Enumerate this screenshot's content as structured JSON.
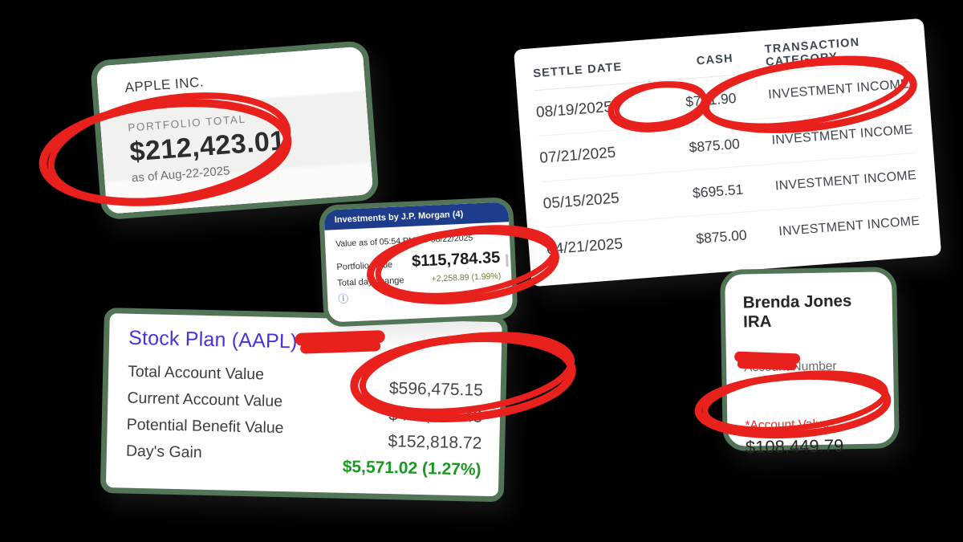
{
  "annotation_color": "#e8211d",
  "card_border_color": "#527557",
  "apple_card": {
    "title": "APPLE INC.",
    "section_label": "PORTFOLIO TOTAL",
    "total": "$212,423.01",
    "as_of": "as of Aug-22-2025"
  },
  "transactions_table": {
    "columns": {
      "settle_date": "SETTLE DATE",
      "cash": "CASH",
      "category": "TRANSACTION CATEGORY"
    },
    "rows": [
      {
        "date": "08/19/2025",
        "cash": "$751.90",
        "category": "INVESTMENT INCOME"
      },
      {
        "date": "07/21/2025",
        "cash": "$875.00",
        "category": "INVESTMENT INCOME"
      },
      {
        "date": "05/15/2025",
        "cash": "$695.51",
        "category": "INVESTMENT INCOME"
      },
      {
        "date": "04/21/2025",
        "cash": "$875.00",
        "category": "INVESTMENT INCOME"
      }
    ]
  },
  "jpm_card": {
    "header": "Investments by J.P. Morgan (4)",
    "value_as_of": "Value as of 05:54 PM ET 08/22/2025",
    "portfolio_value_label": "Portfolio value",
    "portfolio_value": "$115,784.35",
    "day_change_label": "Total day change",
    "day_change": "+2,258.89 (1.99%)",
    "info_icon_glyph": "ⓘ",
    "header_color": "#1d3d8c"
  },
  "stock_plan_card": {
    "title": "Stock Plan (AAPL) –",
    "rows": [
      {
        "label": "Total Account Value",
        "value": "$596,475.15",
        "positive": false
      },
      {
        "label": "Current Account Value",
        "value": "$443,656.43",
        "positive": false
      },
      {
        "label": "Potential Benefit Value",
        "value": "$152,818.72",
        "positive": false
      },
      {
        "label": "Day's Gain",
        "value": "$5,571.02 (1.27%)",
        "positive": true
      }
    ]
  },
  "ira_card": {
    "title": "Brenda Jones IRA",
    "account_number_label": "Account Number",
    "account_value_label": "*Account Value",
    "account_value": "$108,449.79"
  },
  "annotations": {
    "circled_values": [
      "$212,423.01",
      "$751.90",
      "INVESTMENT INCOME",
      "$115,784.35",
      "$596,475.15",
      "$108,449.79"
    ],
    "redacted_items": [
      "stock-plan-title-suffix",
      "ira-account-number"
    ]
  }
}
